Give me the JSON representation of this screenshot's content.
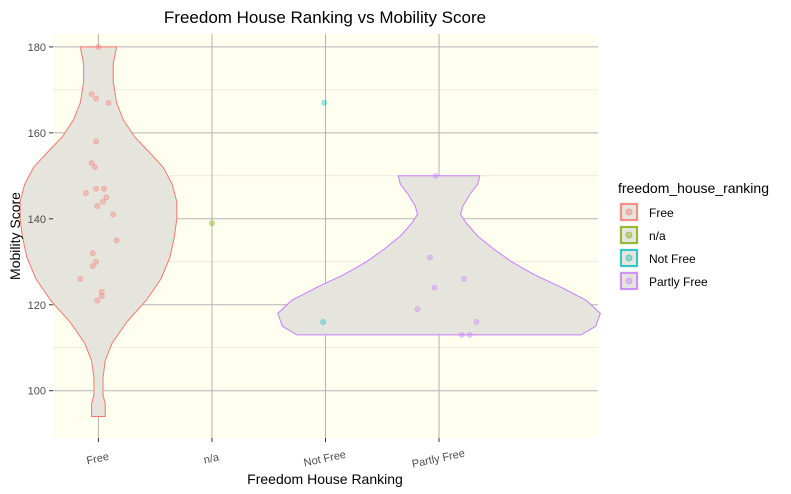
{
  "chart_data": {
    "type": "violin",
    "title": "Freedom House Ranking vs Mobility Score",
    "xlabel": "Freedom House Ranking",
    "ylabel": "Mobility Score",
    "categories": [
      "Free",
      "n/a",
      "Not Free",
      "Partly Free"
    ],
    "ylim": [
      89,
      183
    ],
    "yticks": [
      100,
      120,
      140,
      160,
      180
    ],
    "grid": true,
    "panel_background": "#fffff0",
    "violin_fill": "#e5e4dd",
    "legend": {
      "title": "freedom_house_ranking",
      "position": "right",
      "entries": [
        {
          "label": "Free",
          "color": "#f8766d"
        },
        {
          "label": "n/a",
          "color": "#7cae00"
        },
        {
          "label": "Not Free",
          "color": "#00bfc4"
        },
        {
          "label": "Partly Free",
          "color": "#c77cff"
        }
      ]
    },
    "violins": [
      {
        "category": "Free",
        "color": "#f8766d",
        "profile": [
          {
            "y": 94,
            "halfwidth": 0.06
          },
          {
            "y": 97,
            "halfwidth": 0.06
          },
          {
            "y": 99,
            "halfwidth": 0.04
          },
          {
            "y": 103,
            "halfwidth": 0.04
          },
          {
            "y": 107,
            "halfwidth": 0.06
          },
          {
            "y": 111,
            "halfwidth": 0.12
          },
          {
            "y": 116,
            "halfwidth": 0.25
          },
          {
            "y": 121,
            "halfwidth": 0.42
          },
          {
            "y": 126,
            "halfwidth": 0.55
          },
          {
            "y": 131,
            "halfwidth": 0.63
          },
          {
            "y": 136,
            "halfwidth": 0.67
          },
          {
            "y": 140,
            "halfwidth": 0.69
          },
          {
            "y": 144,
            "halfwidth": 0.69
          },
          {
            "y": 148,
            "halfwidth": 0.65
          },
          {
            "y": 152,
            "halfwidth": 0.57
          },
          {
            "y": 156,
            "halfwidth": 0.43
          },
          {
            "y": 159,
            "halfwidth": 0.32
          },
          {
            "y": 163,
            "halfwidth": 0.22
          },
          {
            "y": 167,
            "halfwidth": 0.16
          },
          {
            "y": 172,
            "halfwidth": 0.13
          },
          {
            "y": 176,
            "halfwidth": 0.13
          },
          {
            "y": 180,
            "halfwidth": 0.16
          }
        ]
      },
      {
        "category": "Partly Free",
        "color": "#c77cff",
        "profile": [
          {
            "y": 113,
            "halfwidth": 1.25
          },
          {
            "y": 115,
            "halfwidth": 1.38
          },
          {
            "y": 118,
            "halfwidth": 1.42
          },
          {
            "y": 121,
            "halfwidth": 1.3
          },
          {
            "y": 124,
            "halfwidth": 1.08
          },
          {
            "y": 127,
            "halfwidth": 0.84
          },
          {
            "y": 130,
            "halfwidth": 0.64
          },
          {
            "y": 133,
            "halfwidth": 0.48
          },
          {
            "y": 136,
            "halfwidth": 0.34
          },
          {
            "y": 139,
            "halfwidth": 0.24
          },
          {
            "y": 141,
            "halfwidth": 0.19
          },
          {
            "y": 143,
            "halfwidth": 0.21
          },
          {
            "y": 146,
            "halfwidth": 0.28
          },
          {
            "y": 148,
            "halfwidth": 0.34
          },
          {
            "y": 150,
            "halfwidth": 0.36
          }
        ]
      }
    ],
    "points": [
      {
        "category": "Free",
        "x_jitter": 0.0,
        "y": 180
      },
      {
        "category": "Free",
        "x_jitter": -0.06,
        "y": 169
      },
      {
        "category": "Free",
        "x_jitter": -0.02,
        "y": 168
      },
      {
        "category": "Free",
        "x_jitter": 0.09,
        "y": 167
      },
      {
        "category": "Free",
        "x_jitter": -0.02,
        "y": 158
      },
      {
        "category": "Free",
        "x_jitter": -0.06,
        "y": 153
      },
      {
        "category": "Free",
        "x_jitter": -0.03,
        "y": 152
      },
      {
        "category": "Free",
        "x_jitter": -0.02,
        "y": 147
      },
      {
        "category": "Free",
        "x_jitter": 0.05,
        "y": 147
      },
      {
        "category": "Free",
        "x_jitter": -0.11,
        "y": 146
      },
      {
        "category": "Free",
        "x_jitter": 0.07,
        "y": 145
      },
      {
        "category": "Free",
        "x_jitter": 0.04,
        "y": 144
      },
      {
        "category": "Free",
        "x_jitter": -0.01,
        "y": 143
      },
      {
        "category": "Free",
        "x_jitter": 0.13,
        "y": 141
      },
      {
        "category": "Free",
        "x_jitter": 0.16,
        "y": 135
      },
      {
        "category": "Free",
        "x_jitter": -0.05,
        "y": 132
      },
      {
        "category": "Free",
        "x_jitter": -0.02,
        "y": 130
      },
      {
        "category": "Free",
        "x_jitter": -0.05,
        "y": 129
      },
      {
        "category": "Free",
        "x_jitter": -0.16,
        "y": 126
      },
      {
        "category": "Free",
        "x_jitter": 0.03,
        "y": 123
      },
      {
        "category": "Free",
        "x_jitter": 0.03,
        "y": 122
      },
      {
        "category": "Free",
        "x_jitter": -0.01,
        "y": 121
      },
      {
        "category": "n/a",
        "x_jitter": 0.0,
        "y": 139
      },
      {
        "category": "Not Free",
        "x_jitter": -0.01,
        "y": 167
      },
      {
        "category": "Not Free",
        "x_jitter": -0.02,
        "y": 116
      },
      {
        "category": "Partly Free",
        "x_jitter": -0.03,
        "y": 150
      },
      {
        "category": "Partly Free",
        "x_jitter": -0.08,
        "y": 131
      },
      {
        "category": "Partly Free",
        "x_jitter": 0.22,
        "y": 126
      },
      {
        "category": "Partly Free",
        "x_jitter": -0.04,
        "y": 124
      },
      {
        "category": "Partly Free",
        "x_jitter": -0.19,
        "y": 119
      },
      {
        "category": "Partly Free",
        "x_jitter": 0.33,
        "y": 116
      },
      {
        "category": "Partly Free",
        "x_jitter": 0.2,
        "y": 113
      },
      {
        "category": "Partly Free",
        "x_jitter": 0.27,
        "y": 113
      }
    ]
  }
}
